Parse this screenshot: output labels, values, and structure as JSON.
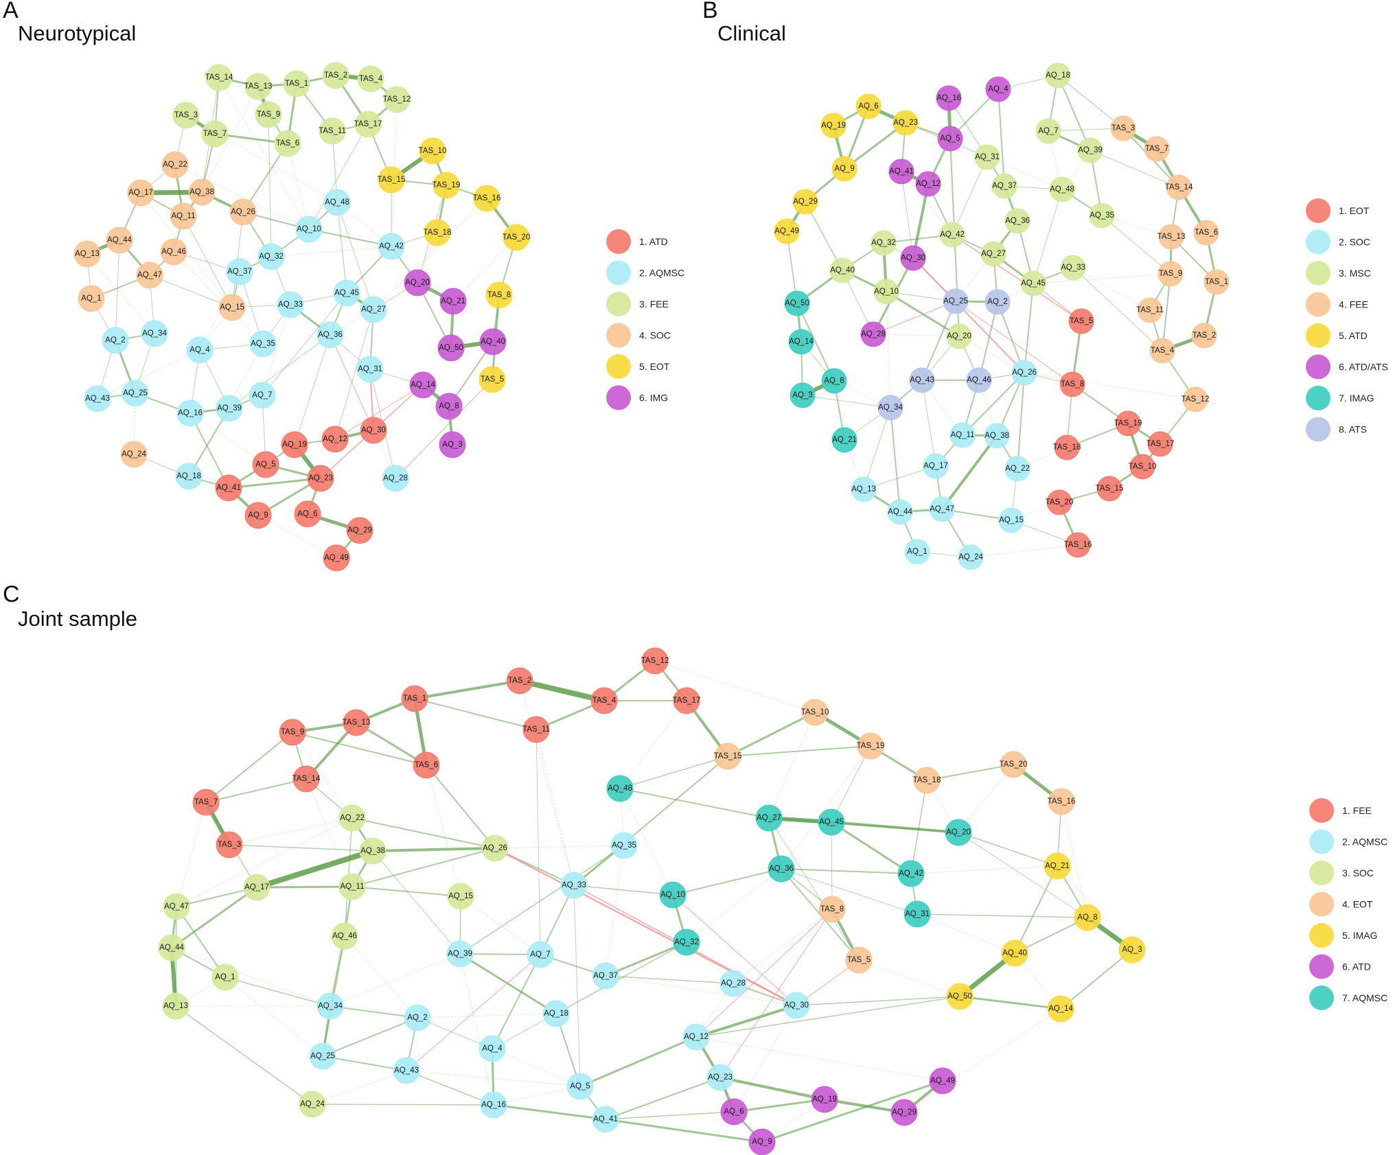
{
  "panels": [
    {
      "letter": "A",
      "title": "Neurotypical",
      "legend": [
        {
          "label": "1. ATD",
          "color": "#f47c6e"
        },
        {
          "label": "2. AQMSC",
          "color": "#a9ecf5"
        },
        {
          "label": "3. FEE",
          "color": "#d5e89a"
        },
        {
          "label": "4. SOC",
          "color": "#f9c596"
        },
        {
          "label": "5. EOT",
          "color": "#f7d93a"
        },
        {
          "label": "6. IMG",
          "color": "#c95cd3"
        }
      ],
      "nodes": [
        {
          "label": "TAS_14",
          "g": 2
        },
        {
          "label": "TAS_13",
          "g": 2
        },
        {
          "label": "TAS_1",
          "g": 2
        },
        {
          "label": "TAS_2",
          "g": 2
        },
        {
          "label": "TAS_4",
          "g": 2
        },
        {
          "label": "TAS_12",
          "g": 2
        },
        {
          "label": "TAS_3",
          "g": 2
        },
        {
          "label": "TAS_9",
          "g": 2
        },
        {
          "label": "TAS_7",
          "g": 2
        },
        {
          "label": "TAS_6",
          "g": 2
        },
        {
          "label": "TAS_11",
          "g": 2
        },
        {
          "label": "TAS_17",
          "g": 2
        },
        {
          "label": "TAS_10",
          "g": 4
        },
        {
          "label": "TAS_15",
          "g": 4
        },
        {
          "label": "TAS_19",
          "g": 4
        },
        {
          "label": "TAS_16",
          "g": 4
        },
        {
          "label": "TAS_18",
          "g": 4
        },
        {
          "label": "TAS_20",
          "g": 4
        },
        {
          "label": "TAS_8",
          "g": 4
        },
        {
          "label": "TAS_5",
          "g": 4
        },
        {
          "label": "AQ_22",
          "g": 3
        },
        {
          "label": "AQ_17",
          "g": 3
        },
        {
          "label": "AQ_38",
          "g": 3
        },
        {
          "label": "AQ_11",
          "g": 3
        },
        {
          "label": "AQ_26",
          "g": 3
        },
        {
          "label": "AQ_44",
          "g": 3
        },
        {
          "label": "AQ_13",
          "g": 3
        },
        {
          "label": "AQ_46",
          "g": 3
        },
        {
          "label": "AQ_47",
          "g": 3
        },
        {
          "label": "AQ_1",
          "g": 3
        },
        {
          "label": "AQ_15",
          "g": 3
        },
        {
          "label": "AQ_24",
          "g": 3
        },
        {
          "label": "AQ_48",
          "g": 1
        },
        {
          "label": "AQ_10",
          "g": 1
        },
        {
          "label": "AQ_32",
          "g": 1
        },
        {
          "label": "AQ_37",
          "g": 1
        },
        {
          "label": "AQ_42",
          "g": 1
        },
        {
          "label": "AQ_33",
          "g": 1
        },
        {
          "label": "AQ_45",
          "g": 1
        },
        {
          "label": "AQ_27",
          "g": 1
        },
        {
          "label": "AQ_36",
          "g": 1
        },
        {
          "label": "AQ_35",
          "g": 1
        },
        {
          "label": "AQ_34",
          "g": 1
        },
        {
          "label": "AQ_2",
          "g": 1
        },
        {
          "label": "AQ_4",
          "g": 1
        },
        {
          "label": "AQ_31",
          "g": 1
        },
        {
          "label": "AQ_7",
          "g": 1
        },
        {
          "label": "AQ_43",
          "g": 1
        },
        {
          "label": "AQ_25",
          "g": 1
        },
        {
          "label": "AQ_16",
          "g": 1
        },
        {
          "label": "AQ_39",
          "g": 1
        },
        {
          "label": "AQ_18",
          "g": 1
        },
        {
          "label": "AQ_28",
          "g": 1
        },
        {
          "label": "AQ_20",
          "g": 5
        },
        {
          "label": "AQ_21",
          "g": 5
        },
        {
          "label": "AQ_50",
          "g": 5
        },
        {
          "label": "AQ_40",
          "g": 5
        },
        {
          "label": "AQ_14",
          "g": 5
        },
        {
          "label": "AQ_8",
          "g": 5
        },
        {
          "label": "AQ_3",
          "g": 5
        },
        {
          "label": "AQ_19",
          "g": 0
        },
        {
          "label": "AQ_12",
          "g": 0
        },
        {
          "label": "AQ_30",
          "g": 0
        },
        {
          "label": "AQ_5",
          "g": 0
        },
        {
          "label": "AQ_23",
          "g": 0
        },
        {
          "label": "AQ_41",
          "g": 0
        },
        {
          "label": "AQ_9",
          "g": 0
        },
        {
          "label": "AQ_6",
          "g": 0
        },
        {
          "label": "AQ_29",
          "g": 0
        },
        {
          "label": "AQ_49",
          "g": 0
        }
      ]
    },
    {
      "letter": "B",
      "title": "Clinical",
      "legend": [
        {
          "label": "1. EOT",
          "color": "#f47c6e"
        },
        {
          "label": "2. SOC",
          "color": "#a9ecf5"
        },
        {
          "label": "3. MSC",
          "color": "#d5e89a"
        },
        {
          "label": "4. FEE",
          "color": "#f9c596"
        },
        {
          "label": "5. ATD",
          "color": "#f7d93a"
        },
        {
          "label": "6. ATD/ATS",
          "color": "#c95cd3"
        },
        {
          "label": "7. IMAG",
          "color": "#3fcdc0"
        },
        {
          "label": "8. ATS",
          "color": "#b6c4e8"
        }
      ],
      "nodes": [
        {
          "label": "AQ_6",
          "g": 4
        },
        {
          "label": "AQ_23",
          "g": 4
        },
        {
          "label": "AQ_19",
          "g": 4
        },
        {
          "label": "AQ_9",
          "g": 4
        },
        {
          "label": "AQ_29",
          "g": 4
        },
        {
          "label": "AQ_49",
          "g": 4
        },
        {
          "label": "AQ_16",
          "g": 5
        },
        {
          "label": "AQ_4",
          "g": 5
        },
        {
          "label": "AQ_5",
          "g": 5
        },
        {
          "label": "AQ_41",
          "g": 5
        },
        {
          "label": "AQ_12",
          "g": 5
        },
        {
          "label": "AQ_30",
          "g": 5
        },
        {
          "label": "AQ_28",
          "g": 5
        },
        {
          "label": "AQ_18",
          "g": 2
        },
        {
          "label": "AQ_7",
          "g": 2
        },
        {
          "label": "AQ_31",
          "g": 2
        },
        {
          "label": "AQ_39",
          "g": 2
        },
        {
          "label": "AQ_37",
          "g": 2
        },
        {
          "label": "AQ_48",
          "g": 2
        },
        {
          "label": "AQ_36",
          "g": 2
        },
        {
          "label": "AQ_35",
          "g": 2
        },
        {
          "label": "AQ_42",
          "g": 2
        },
        {
          "label": "AQ_27",
          "g": 2
        },
        {
          "label": "AQ_32",
          "g": 2
        },
        {
          "label": "AQ_33",
          "g": 2
        },
        {
          "label": "AQ_45",
          "g": 2
        },
        {
          "label": "AQ_40",
          "g": 2
        },
        {
          "label": "AQ_10",
          "g": 2
        },
        {
          "label": "AQ_20",
          "g": 2
        },
        {
          "label": "TAS_3",
          "g": 3
        },
        {
          "label": "TAS_7",
          "g": 3
        },
        {
          "label": "TAS_14",
          "g": 3
        },
        {
          "label": "TAS_13",
          "g": 3
        },
        {
          "label": "TAS_6",
          "g": 3
        },
        {
          "label": "TAS_9",
          "g": 3
        },
        {
          "label": "TAS_1",
          "g": 3
        },
        {
          "label": "TAS_11",
          "g": 3
        },
        {
          "label": "TAS_2",
          "g": 3
        },
        {
          "label": "TAS_4",
          "g": 3
        },
        {
          "label": "TAS_12",
          "g": 3
        },
        {
          "label": "AQ_25",
          "g": 7
        },
        {
          "label": "AQ_2",
          "g": 7
        },
        {
          "label": "AQ_43",
          "g": 7
        },
        {
          "label": "AQ_46",
          "g": 7
        },
        {
          "label": "AQ_34",
          "g": 7
        },
        {
          "label": "AQ_50",
          "g": 6
        },
        {
          "label": "AQ_14",
          "g": 6
        },
        {
          "label": "AQ_8",
          "g": 6
        },
        {
          "label": "AQ_3",
          "g": 6
        },
        {
          "label": "AQ_21",
          "g": 6
        },
        {
          "label": "TAS_5",
          "g": 0
        },
        {
          "label": "TAS_8",
          "g": 0
        },
        {
          "label": "TAS_19",
          "g": 0
        },
        {
          "label": "TAS_18",
          "g": 0
        },
        {
          "label": "TAS_17",
          "g": 0
        },
        {
          "label": "TAS_10",
          "g": 0
        },
        {
          "label": "TAS_15",
          "g": 0
        },
        {
          "label": "TAS_20",
          "g": 0
        },
        {
          "label": "TAS_16",
          "g": 0
        },
        {
          "label": "AQ_26",
          "g": 1
        },
        {
          "label": "AQ_11",
          "g": 1
        },
        {
          "label": "AQ_38",
          "g": 1
        },
        {
          "label": "AQ_17",
          "g": 1
        },
        {
          "label": "AQ_22",
          "g": 1
        },
        {
          "label": "AQ_13",
          "g": 1
        },
        {
          "label": "AQ_44",
          "g": 1
        },
        {
          "label": "AQ_47",
          "g": 1
        },
        {
          "label": "AQ_15",
          "g": 1
        },
        {
          "label": "AQ_1",
          "g": 1
        },
        {
          "label": "AQ_24",
          "g": 1
        }
      ]
    },
    {
      "letter": "C",
      "title": "Joint sample",
      "legend": [
        {
          "label": "1. FEE",
          "color": "#f47c6e"
        },
        {
          "label": "2. AQMSC",
          "color": "#a9ecf5"
        },
        {
          "label": "3. SOC",
          "color": "#d5e89a"
        },
        {
          "label": "4. EOT",
          "color": "#f9c596"
        },
        {
          "label": "5. IMAG",
          "color": "#f7d93a"
        },
        {
          "label": "6. ATD",
          "color": "#c95cd3"
        },
        {
          "label": "7. AQMSC",
          "color": "#3fcdc0"
        }
      ],
      "nodes": [
        {
          "label": "TAS_12",
          "g": 0
        },
        {
          "label": "TAS_2",
          "g": 0
        },
        {
          "label": "TAS_4",
          "g": 0
        },
        {
          "label": "TAS_17",
          "g": 0
        },
        {
          "label": "TAS_1",
          "g": 0
        },
        {
          "label": "TAS_11",
          "g": 0
        },
        {
          "label": "TAS_9",
          "g": 0
        },
        {
          "label": "TAS_13",
          "g": 0
        },
        {
          "label": "TAS_6",
          "g": 0
        },
        {
          "label": "TAS_14",
          "g": 0
        },
        {
          "label": "TAS_7",
          "g": 0
        },
        {
          "label": "TAS_3",
          "g": 0
        },
        {
          "label": "TAS_10",
          "g": 3
        },
        {
          "label": "TAS_19",
          "g": 3
        },
        {
          "label": "TAS_15",
          "g": 3
        },
        {
          "label": "TAS_18",
          "g": 3
        },
        {
          "label": "TAS_20",
          "g": 3
        },
        {
          "label": "TAS_16",
          "g": 3
        },
        {
          "label": "TAS_8",
          "g": 3
        },
        {
          "label": "TAS_5",
          "g": 3
        },
        {
          "label": "AQ_48",
          "g": 6
        },
        {
          "label": "AQ_27",
          "g": 6
        },
        {
          "label": "AQ_45",
          "g": 6
        },
        {
          "label": "AQ_20",
          "g": 6
        },
        {
          "label": "AQ_36",
          "g": 6
        },
        {
          "label": "AQ_42",
          "g": 6
        },
        {
          "label": "AQ_10",
          "g": 6
        },
        {
          "label": "AQ_31",
          "g": 6
        },
        {
          "label": "AQ_32",
          "g": 6
        },
        {
          "label": "AQ_22",
          "g": 2
        },
        {
          "label": "AQ_38",
          "g": 2
        },
        {
          "label": "AQ_26",
          "g": 2
        },
        {
          "label": "AQ_17",
          "g": 2
        },
        {
          "label": "AQ_11",
          "g": 2
        },
        {
          "label": "AQ_15",
          "g": 2
        },
        {
          "label": "AQ_47",
          "g": 2
        },
        {
          "label": "AQ_44",
          "g": 2
        },
        {
          "label": "AQ_46",
          "g": 2
        },
        {
          "label": "AQ_1",
          "g": 2
        },
        {
          "label": "AQ_13",
          "g": 2
        },
        {
          "label": "AQ_24",
          "g": 2
        },
        {
          "label": "AQ_35",
          "g": 1
        },
        {
          "label": "AQ_33",
          "g": 1
        },
        {
          "label": "AQ_39",
          "g": 1
        },
        {
          "label": "AQ_7",
          "g": 1
        },
        {
          "label": "AQ_37",
          "g": 1
        },
        {
          "label": "AQ_28",
          "g": 1
        },
        {
          "label": "AQ_30",
          "g": 1
        },
        {
          "label": "AQ_34",
          "g": 1
        },
        {
          "label": "AQ_2",
          "g": 1
        },
        {
          "label": "AQ_18",
          "g": 1
        },
        {
          "label": "AQ_12",
          "g": 1
        },
        {
          "label": "AQ_25",
          "g": 1
        },
        {
          "label": "AQ_43",
          "g": 1
        },
        {
          "label": "AQ_4",
          "g": 1
        },
        {
          "label": "AQ_23",
          "g": 1
        },
        {
          "label": "AQ_5",
          "g": 1
        },
        {
          "label": "AQ_16",
          "g": 1
        },
        {
          "label": "AQ_41",
          "g": 1
        },
        {
          "label": "AQ_21",
          "g": 4
        },
        {
          "label": "AQ_8",
          "g": 4
        },
        {
          "label": "AQ_3",
          "g": 4
        },
        {
          "label": "AQ_40",
          "g": 4
        },
        {
          "label": "AQ_50",
          "g": 4
        },
        {
          "label": "AQ_14",
          "g": 4
        },
        {
          "label": "AQ_49",
          "g": 5
        },
        {
          "label": "AQ_19",
          "g": 5
        },
        {
          "label": "AQ_6",
          "g": 5
        },
        {
          "label": "AQ_29",
          "g": 5
        },
        {
          "label": "AQ_9",
          "g": 5
        }
      ]
    }
  ]
}
